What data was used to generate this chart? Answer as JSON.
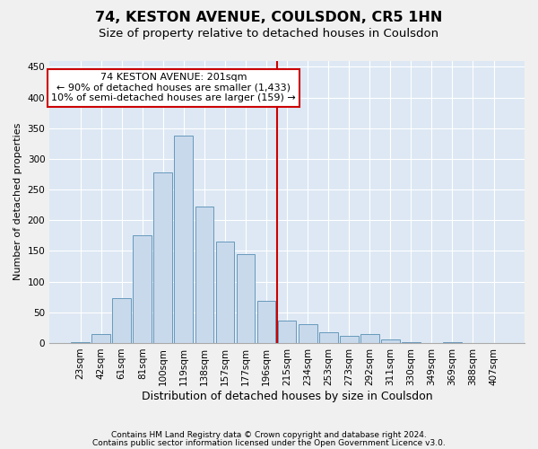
{
  "title": "74, KESTON AVENUE, COULSDON, CR5 1HN",
  "subtitle": "Size of property relative to detached houses in Coulsdon",
  "xlabel": "Distribution of detached houses by size in Coulsdon",
  "ylabel": "Number of detached properties",
  "footnote1": "Contains HM Land Registry data © Crown copyright and database right 2024.",
  "footnote2": "Contains public sector information licensed under the Open Government Licence v3.0.",
  "bar_labels": [
    "23sqm",
    "42sqm",
    "61sqm",
    "81sqm",
    "100sqm",
    "119sqm",
    "138sqm",
    "157sqm",
    "177sqm",
    "196sqm",
    "215sqm",
    "234sqm",
    "253sqm",
    "273sqm",
    "292sqm",
    "311sqm",
    "330sqm",
    "349sqm",
    "369sqm",
    "388sqm",
    "407sqm"
  ],
  "bar_values": [
    2,
    14,
    73,
    175,
    278,
    338,
    222,
    165,
    145,
    69,
    36,
    30,
    17,
    11,
    15,
    6,
    1,
    0,
    1,
    0,
    0
  ],
  "bar_color": "#c9d9ec",
  "bar_edge_color": "#6699bb",
  "background_color": "#dde8f4",
  "grid_color": "#ffffff",
  "vline_color": "#cc0000",
  "vline_x_index": 9.5,
  "annotation_text": "74 KESTON AVENUE: 201sqm\n← 90% of detached houses are smaller (1,433)\n10% of semi-detached houses are larger (159) →",
  "annotation_box_color": "#cc0000",
  "ylim": [
    0,
    460
  ],
  "yticks": [
    0,
    50,
    100,
    150,
    200,
    250,
    300,
    350,
    400,
    450
  ],
  "title_fontsize": 11.5,
  "subtitle_fontsize": 9.5,
  "annotation_fontsize": 8,
  "tick_fontsize": 7.5,
  "xlabel_fontsize": 9,
  "ylabel_fontsize": 8,
  "footnote_fontsize": 6.5
}
